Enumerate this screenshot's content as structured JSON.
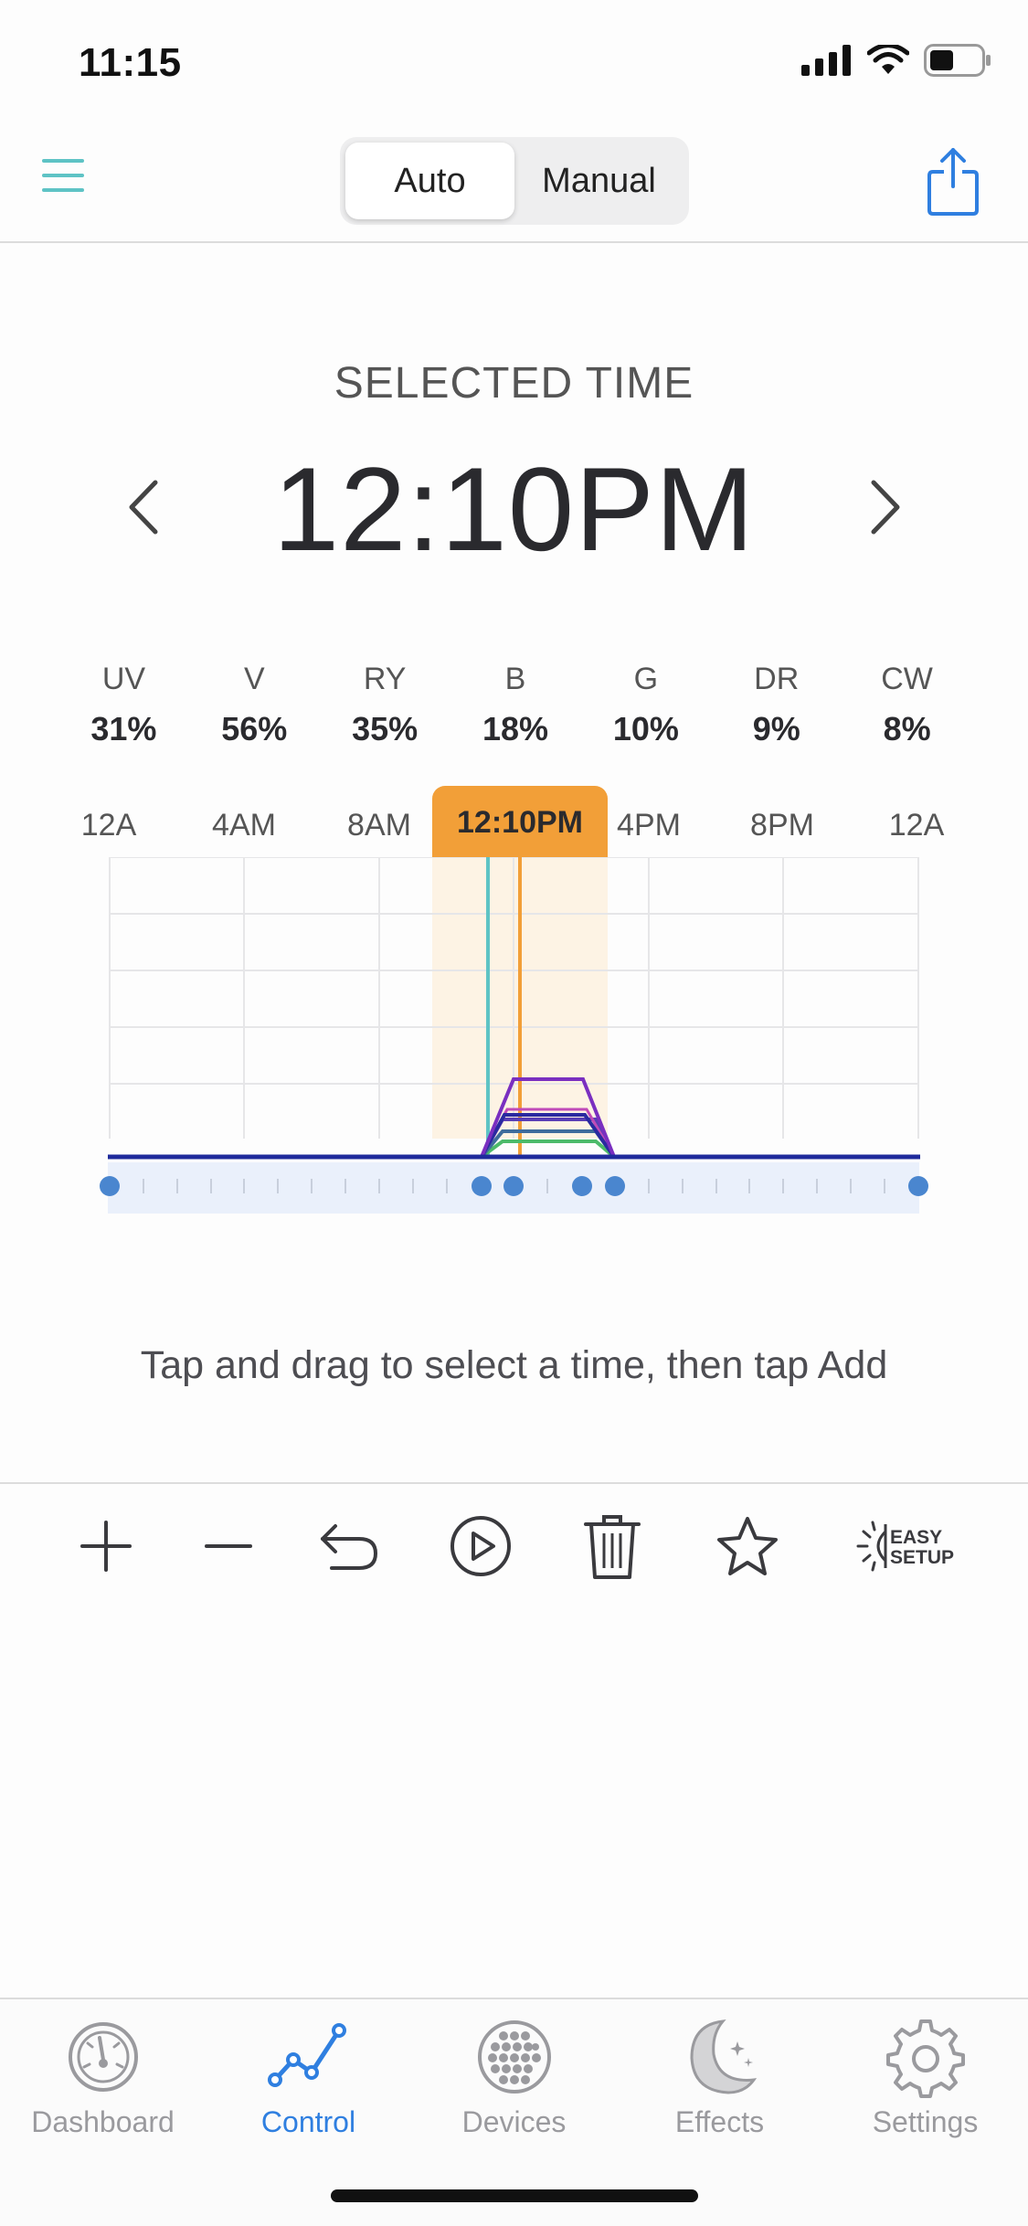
{
  "status": {
    "time": "11:15"
  },
  "header": {
    "segments": [
      {
        "label": "Auto",
        "active": true
      },
      {
        "label": "Manual",
        "active": false
      }
    ]
  },
  "selected": {
    "label": "SELECTED TIME",
    "time": "12:10PM"
  },
  "channels": [
    {
      "name": "UV",
      "value": "31%"
    },
    {
      "name": "V",
      "value": "56%"
    },
    {
      "name": "RY",
      "value": "35%"
    },
    {
      "name": "B",
      "value": "18%"
    },
    {
      "name": "G",
      "value": "10%"
    },
    {
      "name": "DR",
      "value": "9%"
    },
    {
      "name": "CW",
      "value": "8%"
    }
  ],
  "timeline": {
    "tick_labels": [
      "12A",
      "4AM",
      "8AM",
      "12PM",
      "4PM",
      "8PM",
      "12A"
    ],
    "bubble": "12:10PM"
  },
  "hint": "Tap and drag to select a time, then tap Add",
  "toolbar": {
    "easy_setup_line1": "EASY",
    "easy_setup_line2": "SETUP"
  },
  "tabs": [
    {
      "label": "Dashboard",
      "icon": "gauge-icon",
      "active": false
    },
    {
      "label": "Control",
      "icon": "graph-icon",
      "active": true
    },
    {
      "label": "Devices",
      "icon": "led-grid-icon",
      "active": false
    },
    {
      "label": "Effects",
      "icon": "moon-stars-icon",
      "active": false
    },
    {
      "label": "Settings",
      "icon": "gear-icon",
      "active": false
    }
  ],
  "colors": {
    "accent": "#2f7fe0",
    "teal": "#5ec3c5",
    "orange": "#f29f38",
    "purple": "#7a2fc0",
    "navy": "#2a2aa0",
    "green": "#4cba6a"
  }
}
